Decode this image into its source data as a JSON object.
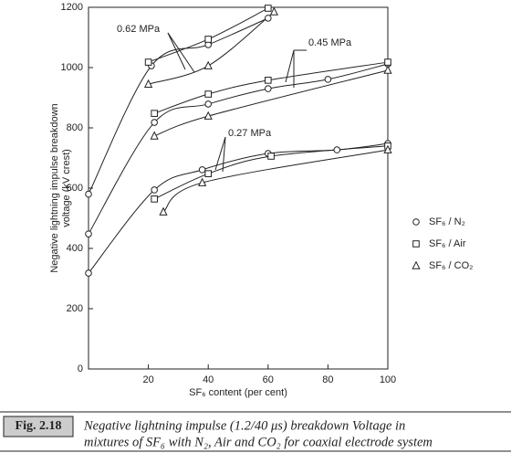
{
  "chart_data": {
    "type": "scatter-curves",
    "xlabel": "SF₆ content (per cent)",
    "ylabel": [
      "Negative lightning impulse breakdown",
      "voltage (kV crest)"
    ],
    "xlim": [
      0,
      100
    ],
    "xticks": [
      20,
      40,
      60,
      80,
      100
    ],
    "ylim": [
      0,
      1200
    ],
    "yticks": [
      0,
      200,
      400,
      600,
      800,
      1000,
      1200
    ],
    "annotations": [
      "0.62 MPa",
      "0.45 MPa",
      "0.27 MPa"
    ],
    "series": [
      {
        "name": "SF₆ / N₂",
        "marker": "circle",
        "color": "#222",
        "curves": [
          {
            "x": [
              0,
              21,
              40,
              60
            ],
            "values": [
              580,
              1006,
              1076,
              1164
            ]
          },
          {
            "x": [
              0,
              22,
              40,
              60,
              80,
              100
            ],
            "values": [
              448,
              818,
              879,
              930,
              961,
              1012
            ]
          },
          {
            "x": [
              0,
              22,
              38,
              60,
              83,
              100
            ],
            "values": [
              318,
              594,
              661,
              715,
              727,
              748
            ]
          }
        ]
      },
      {
        "name": "SF₆ / Air",
        "marker": "square",
        "color": "#222",
        "curves": [
          {
            "x": [
              20,
              40,
              60
            ],
            "values": [
              1018,
              1094,
              1197
            ]
          },
          {
            "x": [
              22,
              40,
              60,
              100
            ],
            "values": [
              848,
              912,
              958,
              1018
            ]
          },
          {
            "x": [
              22,
              40,
              61,
              100
            ],
            "values": [
              564,
              648,
              706,
              740
            ]
          }
        ]
      },
      {
        "name": "SF₆ / CO₂",
        "marker": "triangle",
        "color": "#222",
        "curves": [
          {
            "x": [
              20,
              40,
              62
            ],
            "values": [
              945,
              1006,
              1185
            ]
          },
          {
            "x": [
              22,
              40,
              100
            ],
            "values": [
              773,
              839,
              991
            ]
          },
          {
            "x": [
              25,
              38,
              100
            ],
            "values": [
              521,
              618,
              727
            ]
          }
        ]
      }
    ]
  },
  "caption": {
    "label": "Fig. 2.18",
    "lines": [
      "Negative lightning impulse (1.2/40 μs) breakdown Voltage in",
      "mixtures of SF₆ with N₂, Air and CO₂ for coaxial electrode system"
    ]
  }
}
